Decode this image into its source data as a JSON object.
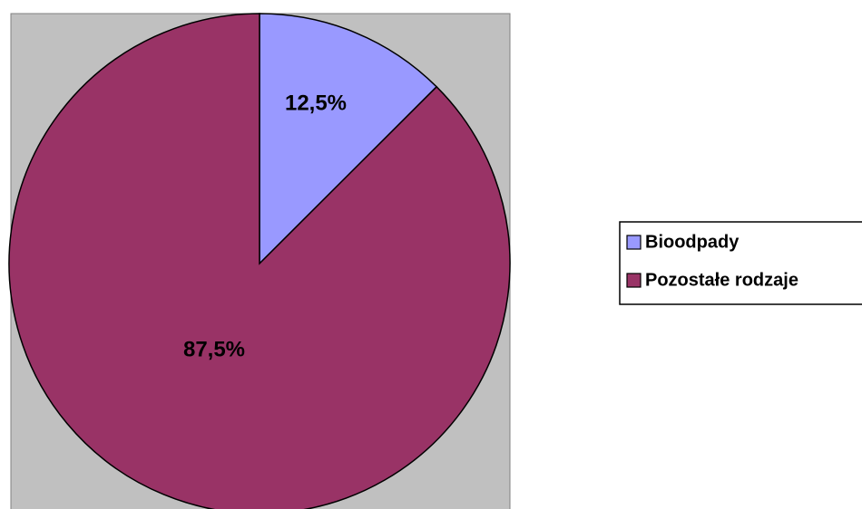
{
  "chart_data": {
    "type": "pie",
    "categories": [
      "Bioodpady",
      "Pozostałe rodzaje"
    ],
    "values": [
      12.5,
      87.5
    ],
    "value_labels": [
      "12,5%",
      "87,5%"
    ],
    "colors": [
      "#9999ff",
      "#993366"
    ]
  }
}
